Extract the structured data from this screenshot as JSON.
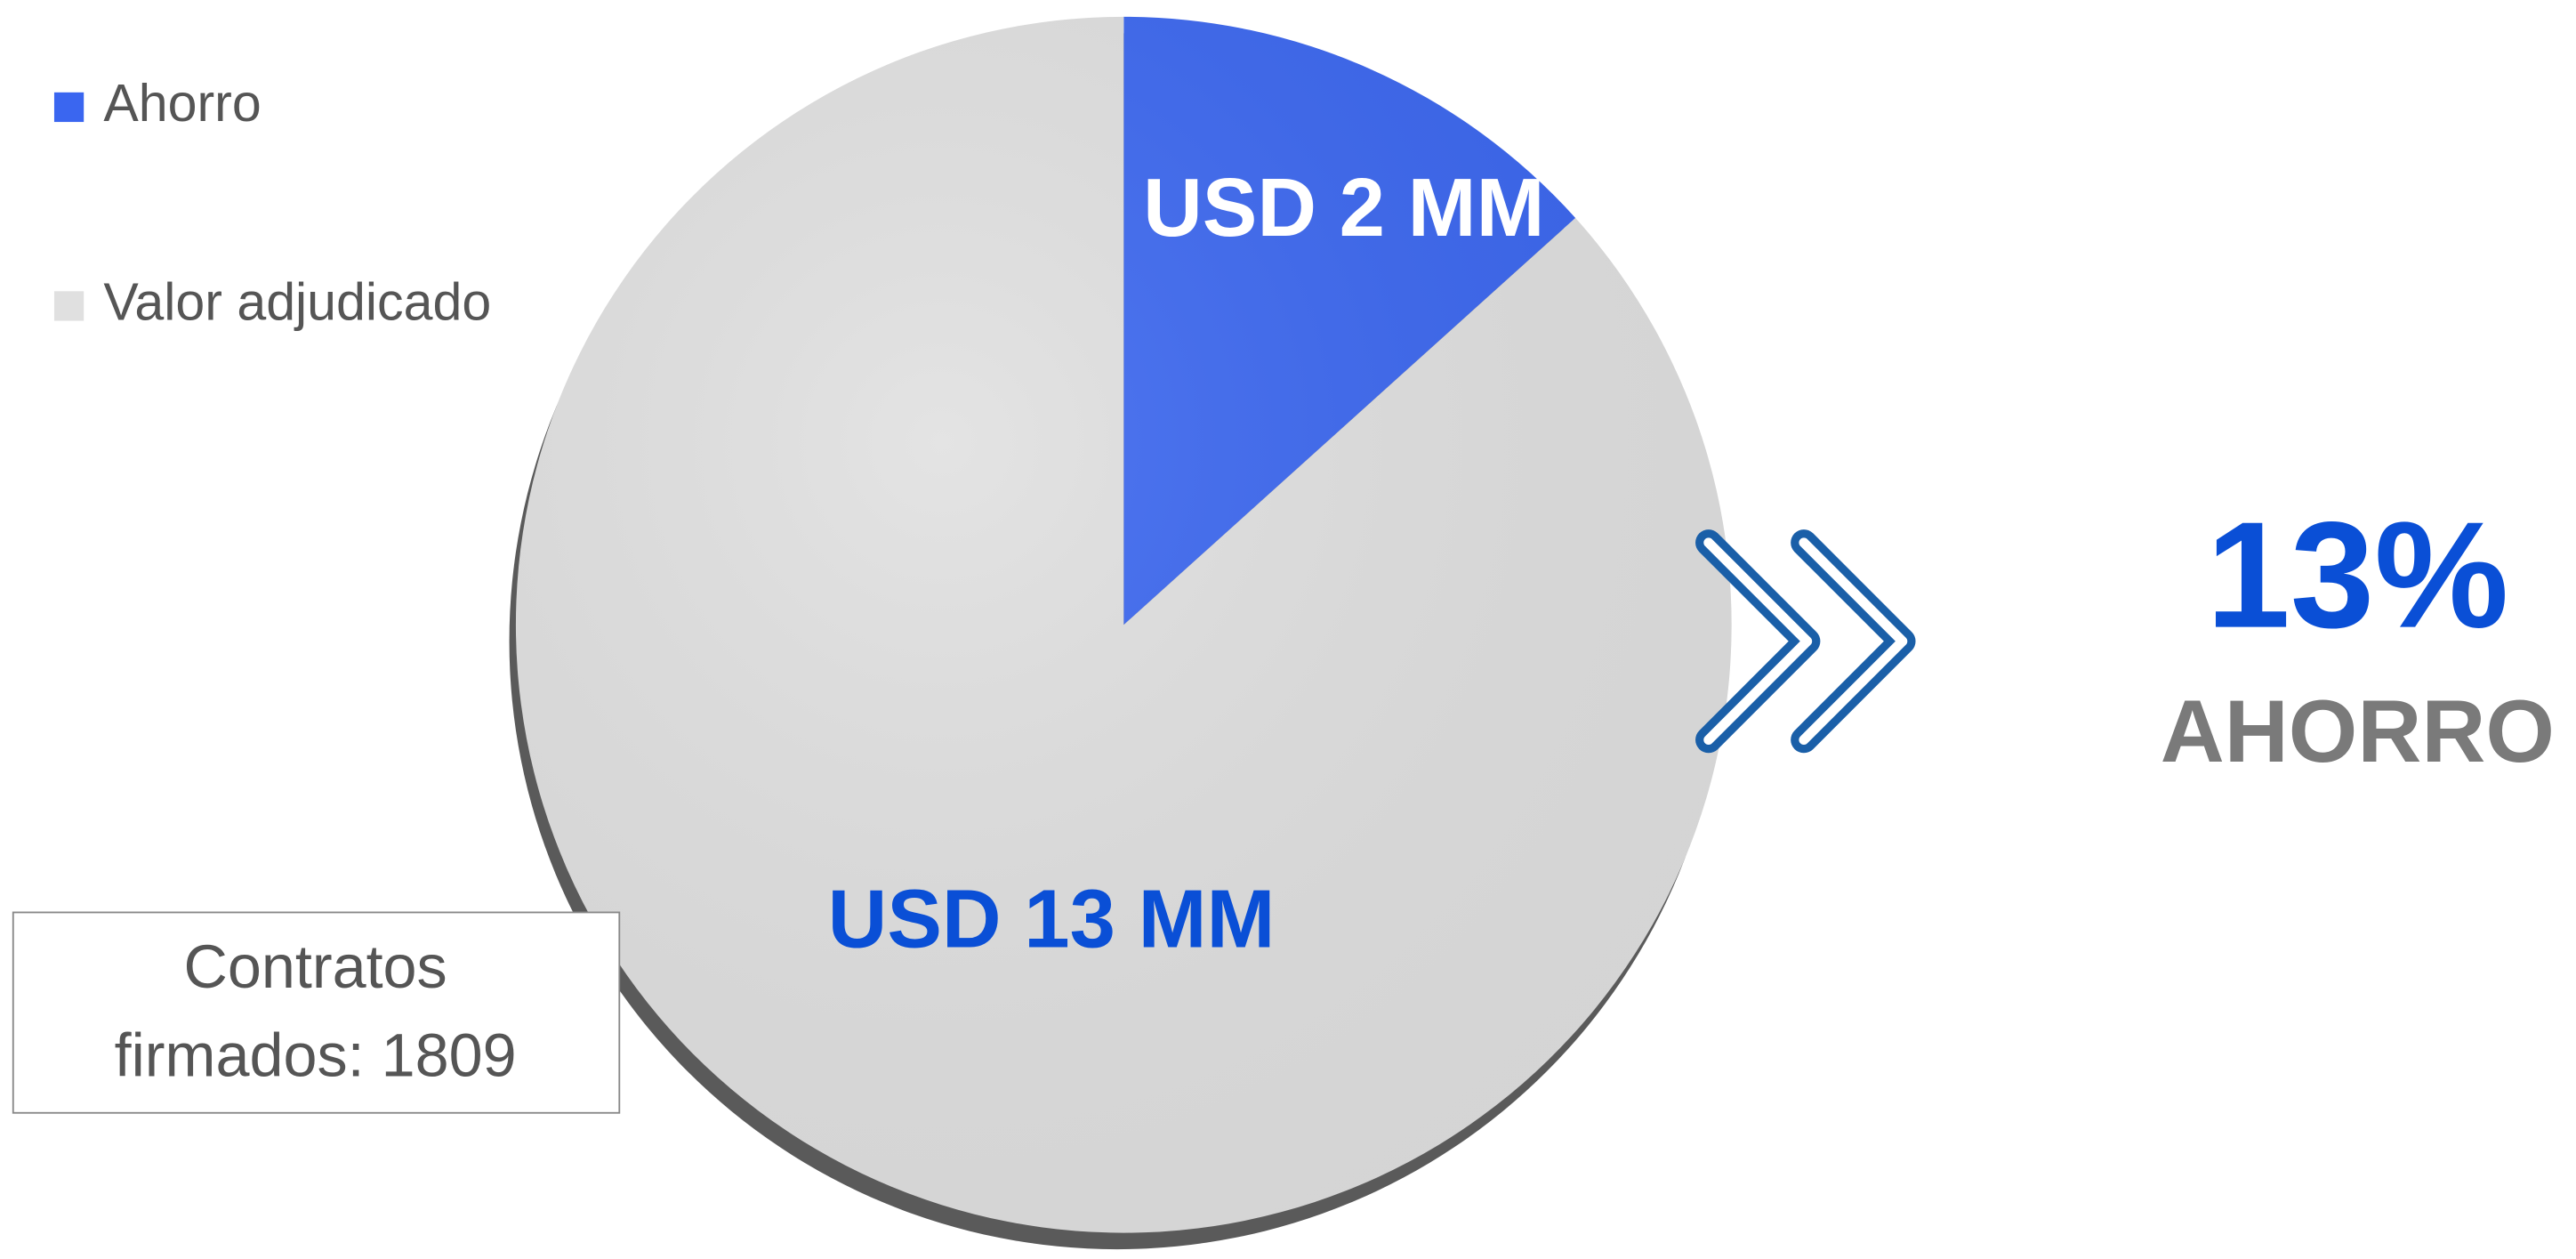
{
  "chart_data": {
    "type": "pie",
    "categories": [
      "Ahorro",
      "Valor adjudicado"
    ],
    "values": [
      2,
      13
    ],
    "value_labels": [
      "USD 2 MM",
      "USD 13 MM"
    ],
    "colors": [
      "#3a66f0",
      "#e0e0e0"
    ],
    "label_colors": [
      "#ffffff",
      "#0a4fd6"
    ],
    "legend": "top-left",
    "annotations": {
      "percent": "13%",
      "caption": "AHORRO"
    },
    "box_text": [
      "Contratos",
      "firmados: 1809"
    ]
  }
}
